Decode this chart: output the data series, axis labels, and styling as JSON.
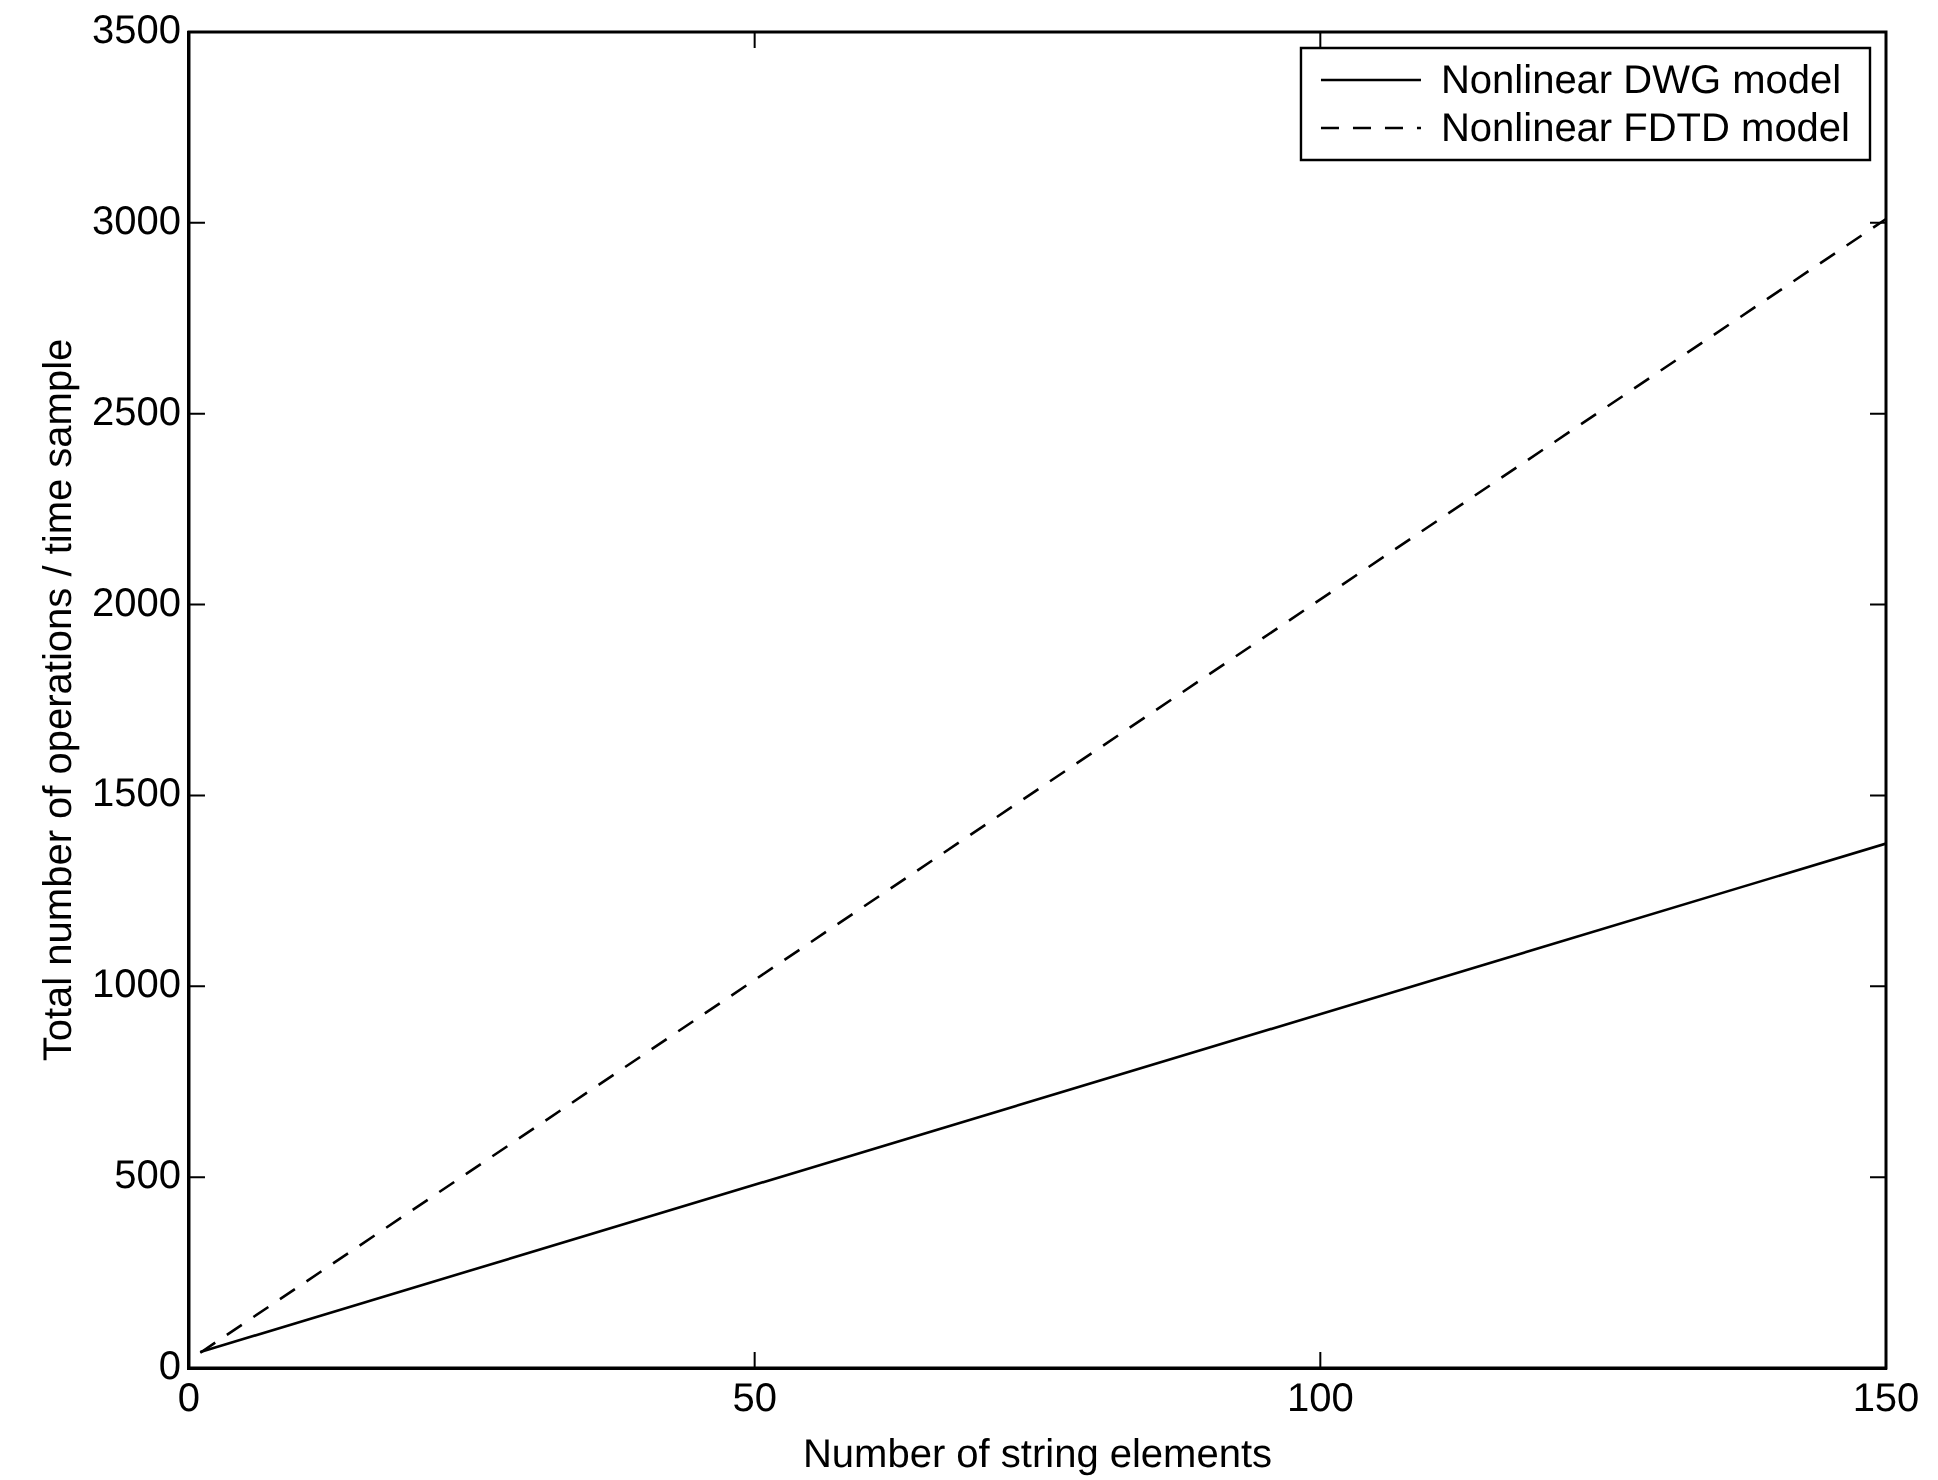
{
  "chart_data": {
    "type": "line",
    "xlabel": "Number of string elements",
    "ylabel": "Total number of operations / time sample",
    "xlim": [
      0,
      150
    ],
    "xticks": [
      0,
      50,
      100,
      150
    ],
    "ylim": [
      0,
      3500
    ],
    "yticks": [
      0,
      500,
      1000,
      1500,
      2000,
      2500,
      3000,
      3500
    ],
    "grid": false,
    "legend": "top right",
    "marker": "none",
    "x": [
      1,
      150
    ],
    "series": [
      {
        "name": "Nonlinear DWG model",
        "color": "#000000",
        "values": [
          42,
          1374
        ],
        "line_style": "solid"
      },
      {
        "name": "Nonlinear FDTD model",
        "color": "#000000",
        "values": [
          40,
          3010
        ],
        "line_style": "dashed"
      }
    ]
  }
}
